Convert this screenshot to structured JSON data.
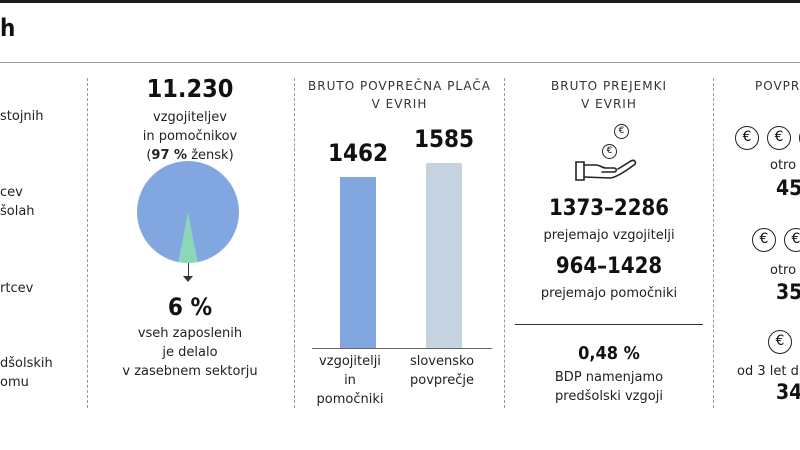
{
  "title": "h",
  "left": {
    "items": [
      [
        "stojnih"
      ],
      [
        "cev",
        "šolah"
      ],
      [
        "rtcev"
      ],
      [
        "dšolskih",
        "omu"
      ]
    ]
  },
  "staff": {
    "count": "11.230",
    "line1": "vzgojiteljev",
    "line2": "in pomočnikov",
    "women_open": "(",
    "women_pct": "97 %",
    "women_close": " žensk)",
    "private_share_value": 6,
    "private_pct": "6 %",
    "private_l1": "vseh zaposlenih",
    "private_l2": "je delalo",
    "private_l3": "v zasebnem sektorju",
    "pie_colors": {
      "main": "#82a6df",
      "slice": "#8ad8b8"
    }
  },
  "chart_data": {
    "type": "bar",
    "title": "BRUTO POVPREČNA PLAČA V EVRIH",
    "title_l1": "BRUTO POVPREČNA PLAČA",
    "title_l2": "V EVRIH",
    "categories": [
      [
        "vzgojitelji",
        "in",
        "pomočniki"
      ],
      [
        "slovensko",
        "povprečje"
      ]
    ],
    "values": [
      1462,
      1585
    ],
    "labels": [
      "1462",
      "1585"
    ],
    "colors": [
      "#82a6df",
      "#c6d4e2"
    ]
  },
  "receipts": {
    "h1": "BRUTO PREJEMKI",
    "h2": "V EVRIH",
    "coin_symbol": "€",
    "teachers_range": "1373–2286",
    "teachers_label": "prejemajo vzgojitelji",
    "assistants_range": "964–1428",
    "assistants_label": "prejemajo pomočniki",
    "gdp_pct": "0,48 %",
    "gdp_l1": "BDP namenjamo",
    "gdp_l2": "predšolski vzgoji"
  },
  "right": {
    "header": "POVPR",
    "coin_symbol": "€",
    "a_label": "otro",
    "a_value": "45",
    "b_label": "otro",
    "b_value": "35",
    "c_label": "od 3 let d",
    "c_value": "34"
  }
}
